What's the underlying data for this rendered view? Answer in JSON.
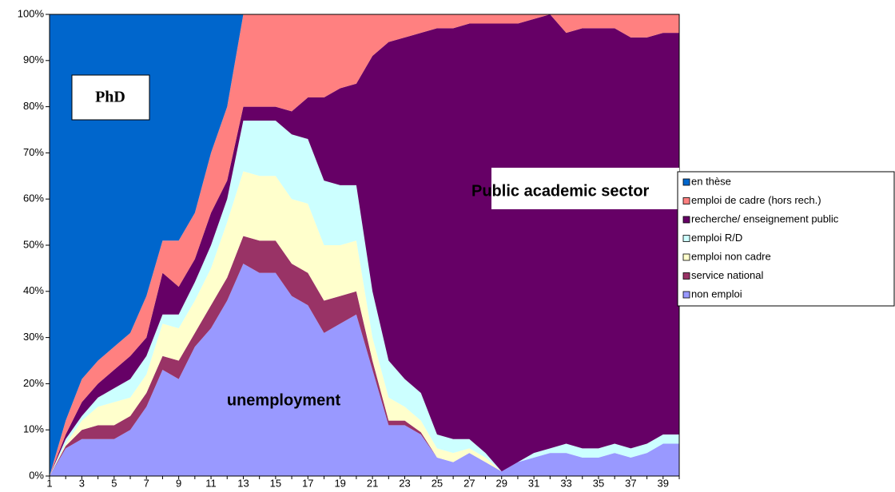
{
  "chart_data": {
    "type": "stacked_area_100",
    "annotations": [
      "PhD",
      "Public academic sector",
      "unemployment"
    ],
    "categories": [
      1,
      null,
      3,
      null,
      5,
      null,
      7,
      null,
      9,
      null,
      11,
      null,
      13,
      null,
      15,
      null,
      17,
      null,
      19,
      null,
      21,
      null,
      23,
      null,
      25,
      null,
      27,
      null,
      29,
      null,
      31,
      null,
      33,
      null,
      35,
      null,
      37,
      null,
      39,
      null
    ],
    "series": [
      {
        "name": "en thèse",
        "color": "#0066cc",
        "values": [
          100,
          88,
          79,
          75,
          72,
          69,
          61,
          49,
          49,
          43,
          30,
          20,
          0,
          0,
          0,
          0,
          0,
          0,
          0,
          0,
          0,
          0,
          0,
          0,
          0,
          0,
          0,
          0,
          0,
          0,
          0,
          0,
          0,
          0,
          0,
          0,
          0,
          0,
          0,
          0
        ]
      },
      {
        "name": "emploi de cadre (hors rech.)",
        "color": "#ff8080",
        "values": [
          0,
          3,
          5,
          5,
          5,
          5,
          9,
          7,
          10,
          10,
          13,
          16,
          20,
          20,
          20,
          21,
          18,
          18,
          16,
          15,
          9,
          6,
          5,
          4,
          3,
          3,
          2,
          2,
          2,
          2,
          1,
          0,
          4,
          3,
          3,
          3,
          5,
          5,
          4,
          4
        ]
      },
      {
        "name": "recherche/ enseignement public",
        "color": "#660066",
        "values": [
          0,
          1,
          3,
          3,
          4,
          5,
          4,
          9,
          6,
          5,
          7,
          4,
          3,
          3,
          3,
          5,
          9,
          18,
          21,
          22,
          51,
          69,
          74,
          78,
          88,
          89,
          90,
          93,
          97,
          95,
          94,
          94,
          89,
          91,
          91,
          90,
          89,
          88,
          87,
          87
        ]
      },
      {
        "name": "emploi R/D",
        "color": "#ccffff",
        "values": [
          0,
          1,
          1,
          2,
          3,
          4,
          4,
          2,
          3,
          4,
          5,
          5,
          11,
          12,
          12,
          14,
          14,
          14,
          13,
          12,
          10,
          8,
          6,
          6,
          3,
          3,
          2,
          1,
          0,
          0,
          1,
          1,
          2,
          2,
          2,
          2,
          2,
          2,
          2,
          2
        ]
      },
      {
        "name": "emploi non cadre",
        "color": "#ffffcc",
        "values": [
          0,
          0.5,
          2,
          4,
          5,
          4,
          4,
          7,
          7,
          7,
          8,
          12,
          14,
          14,
          14,
          14,
          15,
          12,
          11,
          11,
          5,
          5,
          3,
          2.5,
          2,
          2,
          1,
          1,
          0,
          0,
          0,
          0,
          0,
          0,
          0,
          0,
          0,
          0,
          0,
          0
        ]
      },
      {
        "name": "service national",
        "color": "#993366",
        "values": [
          0,
          0.5,
          2,
          3,
          3,
          3,
          3,
          3,
          4,
          3,
          5,
          5,
          6,
          7,
          7,
          7,
          7,
          7,
          6,
          5,
          2,
          1,
          1,
          0.5,
          0,
          0,
          0,
          0,
          0,
          0,
          0,
          0,
          0,
          0,
          0,
          0,
          0,
          0,
          0,
          0
        ]
      },
      {
        "name": "non emploi",
        "color": "#9999ff",
        "values": [
          0,
          6,
          8,
          8,
          8,
          10,
          15,
          23,
          21,
          28,
          32,
          38,
          46,
          44,
          44,
          39,
          37,
          31,
          33,
          35,
          23,
          11,
          11,
          9,
          4,
          3,
          5,
          3,
          1,
          3,
          4,
          5,
          5,
          4,
          4,
          5,
          4,
          5,
          7,
          7
        ]
      }
    ],
    "ylim": [
      0,
      100
    ],
    "yticks": [
      {
        "value": 0,
        "label": "0%"
      },
      {
        "value": 10,
        "label": "10%"
      },
      {
        "value": 20,
        "label": "20%"
      },
      {
        "value": 30,
        "label": "30%"
      },
      {
        "value": 40,
        "label": "40%"
      },
      {
        "value": 50,
        "label": "50%"
      },
      {
        "value": 60,
        "label": "60%"
      },
      {
        "value": 70,
        "label": "70%"
      },
      {
        "value": 80,
        "label": "80%"
      },
      {
        "value": 90,
        "label": "90%"
      },
      {
        "value": 100,
        "label": "100%"
      }
    ],
    "legend": "right"
  }
}
